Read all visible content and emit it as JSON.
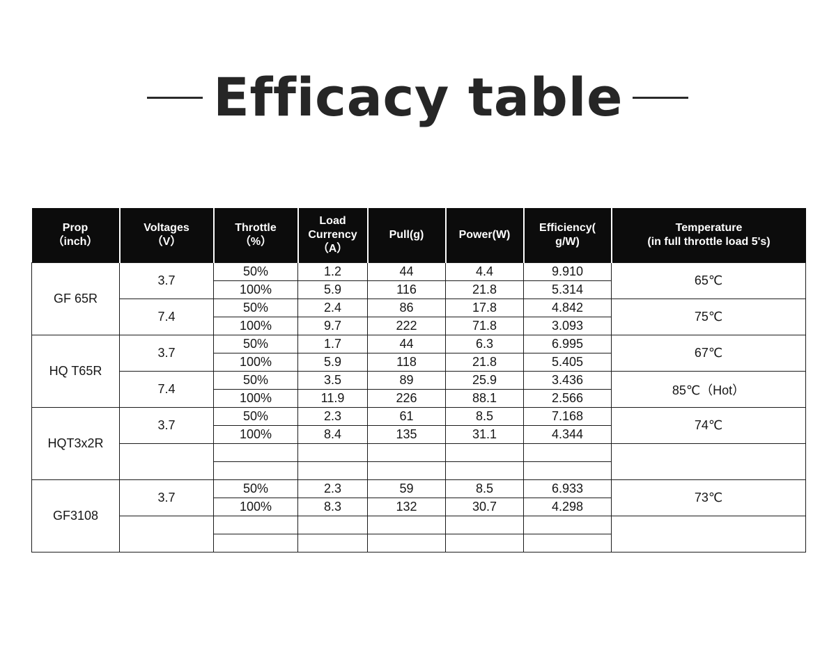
{
  "title": "Efficacy table",
  "headers": {
    "prop": [
      "Prop",
      "（inch）"
    ],
    "voltage": [
      "Voltages",
      "（V）"
    ],
    "throttle": [
      "Throttle",
      "（%）"
    ],
    "current": [
      "Load",
      "Currency",
      "（A）"
    ],
    "pull": [
      "Pull(g)"
    ],
    "power": [
      "Power(W)"
    ],
    "efficiency": [
      "Efficiency(",
      "g/W)"
    ],
    "temperature": [
      "Temperature",
      "(in full throttle load 5's)"
    ]
  },
  "groups": [
    {
      "prop": "GF 65R",
      "blocks": [
        {
          "voltage": "3.7",
          "temperature": "65℃",
          "rows": [
            [
              "50%",
              "1.2",
              "44",
              "4.4",
              "9.910"
            ],
            [
              "100%",
              "5.9",
              "116",
              "21.8",
              "5.314"
            ]
          ]
        },
        {
          "voltage": "7.4",
          "temperature": "75℃",
          "rows": [
            [
              "50%",
              "2.4",
              "86",
              "17.8",
              "4.842"
            ],
            [
              "100%",
              "9.7",
              "222",
              "71.8",
              "3.093"
            ]
          ]
        }
      ]
    },
    {
      "prop": "HQ T65R",
      "blocks": [
        {
          "voltage": "3.7",
          "temperature": "67℃",
          "rows": [
            [
              "50%",
              "1.7",
              "44",
              "6.3",
              "6.995"
            ],
            [
              "100%",
              "5.9",
              "118",
              "21.8",
              "5.405"
            ]
          ]
        },
        {
          "voltage": "7.4",
          "temperature": "85℃（Hot）",
          "rows": [
            [
              "50%",
              "3.5",
              "89",
              "25.9",
              "3.436"
            ],
            [
              "100%",
              "11.9",
              "226",
              "88.1",
              "2.566"
            ]
          ]
        }
      ]
    },
    {
      "prop": "HQT3x2R",
      "blocks": [
        {
          "voltage": "3.7",
          "temperature": "74℃",
          "rows": [
            [
              "50%",
              "2.3",
              "61",
              "8.5",
              "7.168"
            ],
            [
              "100%",
              "8.4",
              "135",
              "31.1",
              "4.344"
            ]
          ]
        },
        {
          "voltage": "",
          "temperature": "",
          "rows": [
            [
              "",
              "",
              "",
              "",
              ""
            ],
            [
              "",
              "",
              "",
              "",
              ""
            ]
          ]
        }
      ]
    },
    {
      "prop": "GF3108",
      "blocks": [
        {
          "voltage": "3.7",
          "temperature": "73℃",
          "rows": [
            [
              "50%",
              "2.3",
              "59",
              "8.5",
              "6.933"
            ],
            [
              "100%",
              "8.3",
              "132",
              "30.7",
              "4.298"
            ]
          ]
        },
        {
          "voltage": "",
          "temperature": "",
          "rows": [
            [
              "",
              "",
              "",
              "",
              ""
            ],
            [
              "",
              "",
              "",
              "",
              ""
            ]
          ]
        }
      ]
    }
  ]
}
